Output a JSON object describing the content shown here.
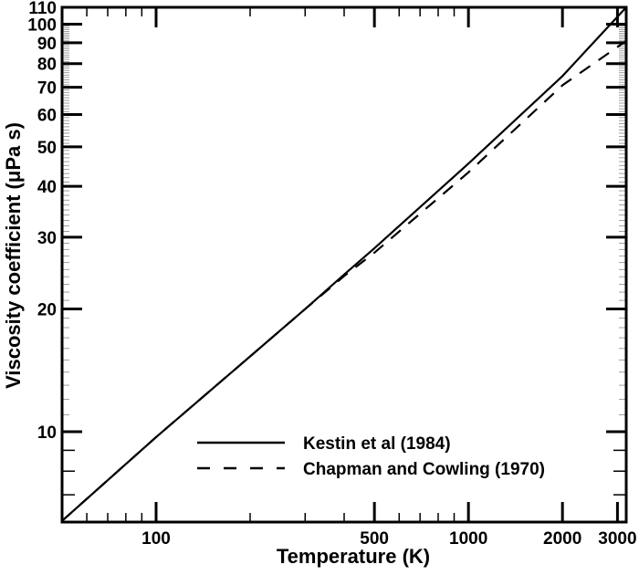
{
  "chart_data": {
    "type": "line",
    "title": "",
    "xlabel": "Temperature (K)",
    "ylabel": "Viscosity coefficient (μPa s)",
    "xscale": "log",
    "yscale": "log",
    "xlim": [
      50,
      3200
    ],
    "ylim": [
      6,
      110
    ],
    "grid": false,
    "legend_position": "lower right (inside)",
    "x_ticks": [
      {
        "value": 100,
        "label": "100"
      },
      {
        "value": 500,
        "label": "500"
      },
      {
        "value": 1000,
        "label": "1000"
      },
      {
        "value": 2000,
        "label": "2000"
      },
      {
        "value": 3000,
        "label": "3000"
      }
    ],
    "y_ticks": [
      {
        "value": 10,
        "label": "10"
      },
      {
        "value": 20,
        "label": "20"
      },
      {
        "value": 30,
        "label": "30"
      },
      {
        "value": 40,
        "label": "40"
      },
      {
        "value": 50,
        "label": "50"
      },
      {
        "value": 60,
        "label": "60"
      },
      {
        "value": 70,
        "label": "70"
      },
      {
        "value": 80,
        "label": "80"
      },
      {
        "value": 90,
        "label": "90"
      },
      {
        "value": 100,
        "label": "100"
      },
      {
        "value": 110,
        "label": "110"
      }
    ],
    "series": [
      {
        "name": "Kestin et al (1984)",
        "style": "solid",
        "color": "#000000",
        "x": [
          50,
          100,
          200,
          300,
          400,
          500,
          1000,
          2000,
          3200
        ],
        "values": [
          6.04,
          9.7,
          15.3,
          20.0,
          24.3,
          28.2,
          45.5,
          74.6,
          110
        ]
      },
      {
        "name": "Chapman and Cowling (1970)",
        "style": "dashed",
        "color": "#000000",
        "x": [
          50,
          100,
          200,
          300,
          400,
          500,
          1000,
          2000,
          3200
        ],
        "values": [
          6.04,
          9.7,
          15.3,
          20.0,
          24.1,
          27.5,
          43.3,
          70.8,
          91
        ]
      }
    ]
  }
}
